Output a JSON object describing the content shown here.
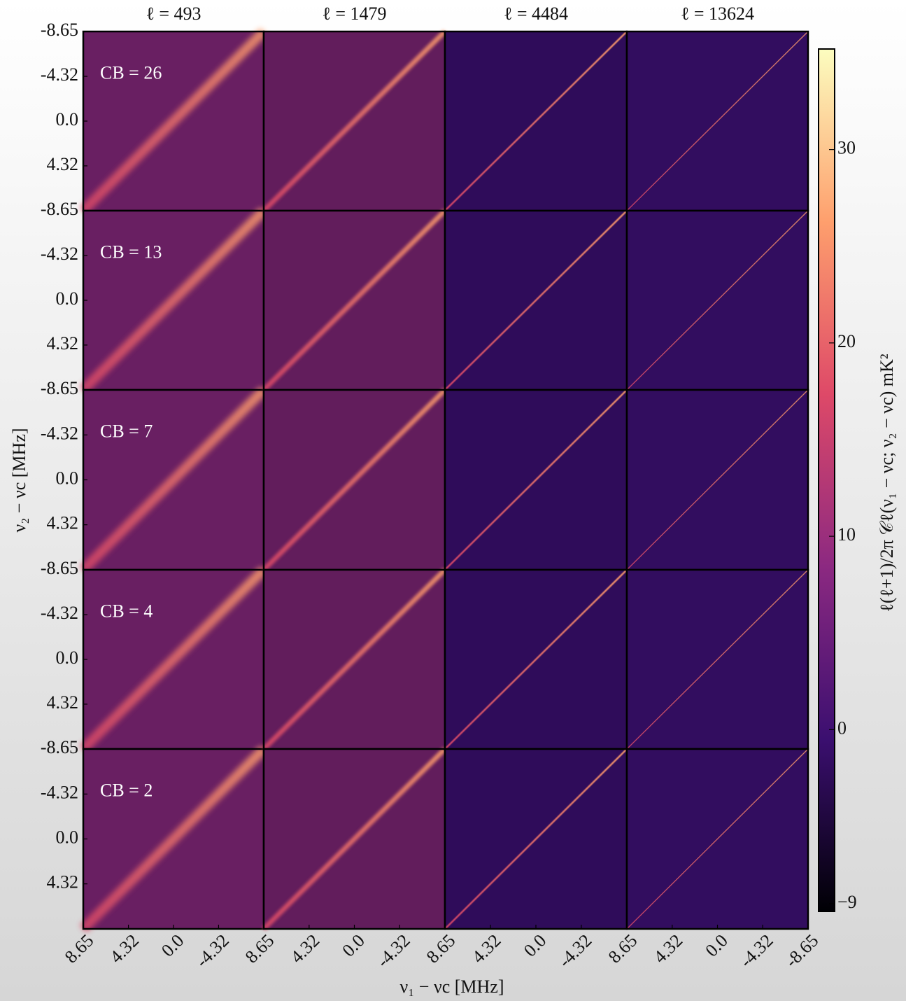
{
  "chart_data": {
    "type": "heatmap-grid",
    "columns": [
      "ℓ = 493",
      "ℓ = 1479",
      "ℓ = 4484",
      "ℓ = 13624"
    ],
    "rows": [
      "CB = 26",
      "CB = 13",
      "CB = 7",
      "CB = 4",
      "CB = 2"
    ],
    "xlabel": "ν₁ − νc [MHz]",
    "ylabel": "ν₂ − νc [MHz]",
    "xlim": [
      8.65,
      -8.65
    ],
    "ylim": [
      -8.65,
      8.65
    ],
    "xticks": [
      8.65,
      4.32,
      {
        "value": 0,
        "label": "0.0"
      },
      {
        "value": -4.32,
        "label": "-4.32"
      },
      {
        "value": -8.65,
        "label": "-8.65"
      }
    ],
    "yticks": [
      {
        "value": -8.65,
        "label": "-8.65"
      },
      {
        "value": -4.32,
        "label": "-4.32"
      },
      {
        "value": 0,
        "label": "0.0"
      },
      4.32
    ],
    "colorbar": {
      "label": "ℓ(ℓ+1)/2π 𝒞ℓ(ν₁ − νc; ν₂ − νc) mK²",
      "lim": [
        -9.4,
        35.2
      ],
      "ticks": [
        {
          "value": -9,
          "label": "−9"
        },
        0,
        10,
        20,
        30
      ],
      "colormap": [
        "#000004",
        "#3b0f70",
        "#8c2981",
        "#de4968",
        "#fe9f6d",
        "#fcfdbf"
      ]
    }
  }
}
